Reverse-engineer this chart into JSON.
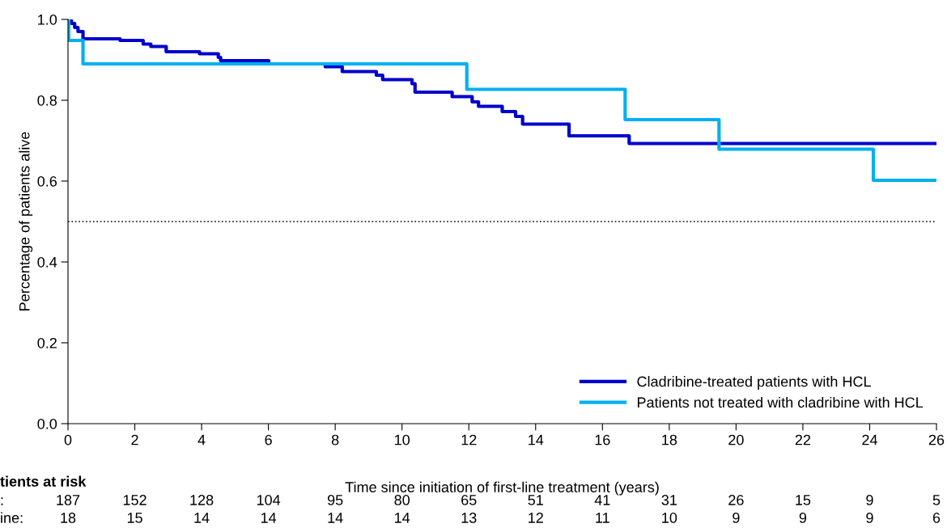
{
  "chart_data": {
    "type": "step",
    "xlabel": "Time since initiation of first-line treatment (years)",
    "ylabel": "Percentage of patients alive",
    "series": [
      {
        "name": "Cladribine-treated patients with HCL",
        "color": "#0000cc",
        "x": [
          0,
          0.1,
          0.2,
          0.3,
          0.45,
          1.56,
          2.25,
          2.48,
          2.94,
          3.94,
          4.5,
          4.57,
          6.01,
          7.7,
          8.21,
          9.23,
          9.42,
          10.3,
          10.39,
          11.5,
          12.1,
          12.29,
          13.0,
          13.4,
          13.61,
          15.0,
          16.8,
          26
        ],
        "values": [
          1.0,
          0.99,
          0.98,
          0.97,
          0.952,
          0.948,
          0.939,
          0.933,
          0.92,
          0.915,
          0.906,
          0.898,
          0.89,
          0.883,
          0.871,
          0.862,
          0.851,
          0.841,
          0.82,
          0.809,
          0.796,
          0.785,
          0.772,
          0.76,
          0.741,
          0.712,
          0.693,
          0.693
        ]
      },
      {
        "name": "Patients not treated with cladribine with HCL",
        "color": "#00b0f0",
        "x": [
          0,
          0.02,
          0.45,
          11.94,
          16.68,
          19.49,
          24.11,
          26
        ],
        "values": [
          1.0,
          0.948,
          0.89,
          0.827,
          0.752,
          0.679,
          0.602,
          0.602
        ]
      }
    ],
    "xlim": [
      0,
      26
    ],
    "xticks": [
      0,
      2,
      4,
      6,
      8,
      10,
      12,
      14,
      16,
      18,
      20,
      22,
      24,
      26
    ],
    "ylim": [
      0,
      1.0
    ],
    "yticks": [
      {
        "value": 0,
        "label": "0.0"
      },
      {
        "value": 0.2,
        "label": "0.2"
      },
      {
        "value": 0.4,
        "label": "0.4"
      },
      {
        "value": 0.6,
        "label": "0.6"
      },
      {
        "value": 0.8,
        "label": "0.8"
      },
      {
        "value": 1.0,
        "label": "1.0"
      }
    ],
    "ref_lines": [
      {
        "axis": "y",
        "value": 0.5,
        "color": "#000000",
        "line_style": "dotted"
      }
    ],
    "legend": "bottom right",
    "grid": false,
    "annotations": [
      "tients at risk",
      ":",
      "187",
      "152",
      "128",
      "104",
      "95",
      "80",
      "65",
      "51",
      "41",
      "31",
      "26",
      "15",
      "9",
      "5",
      "ine:",
      "18",
      "15",
      "14",
      "14",
      "14",
      "14",
      "13",
      "12",
      "11",
      "10",
      "9",
      "9",
      "9",
      "6"
    ]
  }
}
